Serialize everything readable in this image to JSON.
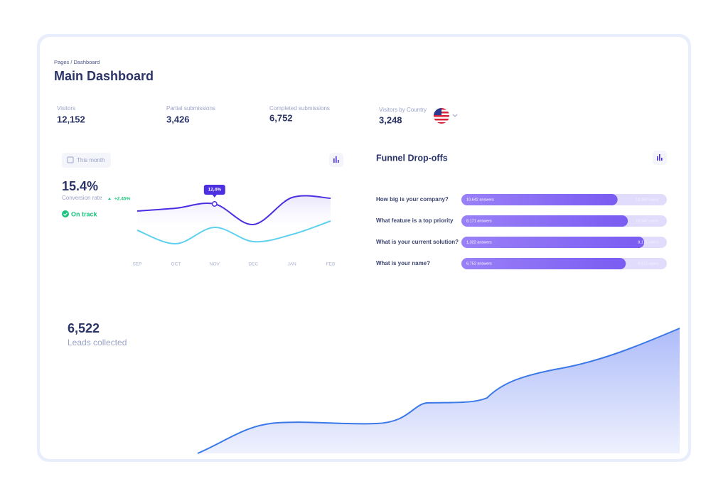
{
  "header": {
    "breadcrumb": "Pages / Dashboard",
    "title": "Main Dashboard"
  },
  "stats": [
    {
      "label": "Visitors",
      "value": "12,152"
    },
    {
      "label": "Partial submissions",
      "value": "3,426"
    },
    {
      "label": "Completed submissions",
      "value": "6,752"
    },
    {
      "label": "Visitors by Country",
      "value": "3,248"
    }
  ],
  "conversion": {
    "period": "This month",
    "rate": "15.4%",
    "rate_label": "Conversion rate",
    "change": "+2.45%",
    "status": "On track"
  },
  "chart_data": {
    "type": "line",
    "categories": [
      "SEP",
      "OCT",
      "NOV",
      "DEC",
      "JAN",
      "FEB"
    ],
    "ylim": [
      0,
      20
    ],
    "series": [
      {
        "color": "#4b2fe0",
        "values": [
          10.4,
          11.2,
          12.4,
          6.6,
          14.2,
          14.0
        ],
        "value_labels": [
          null,
          null,
          "12,4%",
          null,
          null,
          null
        ]
      },
      {
        "color": "#5fd0f0",
        "values": [
          5.0,
          1.2,
          5.8,
          1.8,
          3.8,
          7.6
        ]
      }
    ]
  },
  "funnel": {
    "title": "Funnel Drop-offs",
    "rows": [
      {
        "question": "How big is your company?",
        "answers": "10,642 answers",
        "users": "13,453 users",
        "value": 76
      },
      {
        "question": "What feature is a top priority",
        "answers": "8,171 answers",
        "users": "10,642 users",
        "value": 81
      },
      {
        "question": "What is your current solution?",
        "answers": "1,322 answers",
        "users": "8,171 users",
        "value": 89
      },
      {
        "question": "What is your name?",
        "answers": "6,752 answers",
        "users": "8,171 users",
        "value": 80
      }
    ]
  },
  "leads": {
    "value": "6,522",
    "label": "Leads collected"
  }
}
